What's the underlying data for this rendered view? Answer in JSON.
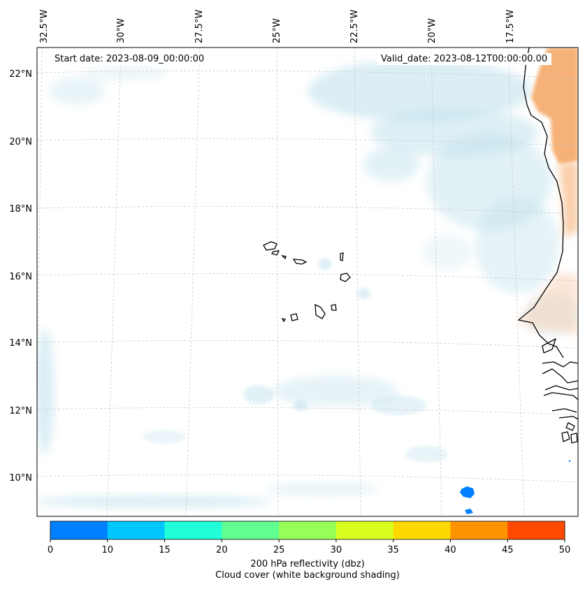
{
  "start_date": "Start date: 2023-08-09_00:00:00",
  "valid_date": "Valid_date: 2023-08-12T00:00:00.00",
  "longitude_labels": [
    "32.5°W",
    "30°W",
    "27.5°W",
    "25°W",
    "22.5°W",
    "20°W",
    "17.5°W"
  ],
  "latitude_labels": [
    "22°N",
    "20°N",
    "18°N",
    "16°N",
    "14°N",
    "12°N",
    "10°N"
  ],
  "colorbar": {
    "ticks": [
      "0",
      "10",
      "15",
      "20",
      "25",
      "30",
      "35",
      "40",
      "45",
      "50"
    ],
    "colors": [
      "#0080ff",
      "#00c8ff",
      "#20ffd8",
      "#60ff90",
      "#98ff58",
      "#d8ff20",
      "#ffd800",
      "#ff9400",
      "#ff4a00"
    ],
    "label_line1": "200 hPa reflectivity (dbz)",
    "label_line2": "Cloud cover (white background shading)"
  },
  "colors": {
    "cloud": "#bfe1ec",
    "land_warm": "#f4a460",
    "coast": "#000000",
    "grid": "#c8c8c8"
  }
}
